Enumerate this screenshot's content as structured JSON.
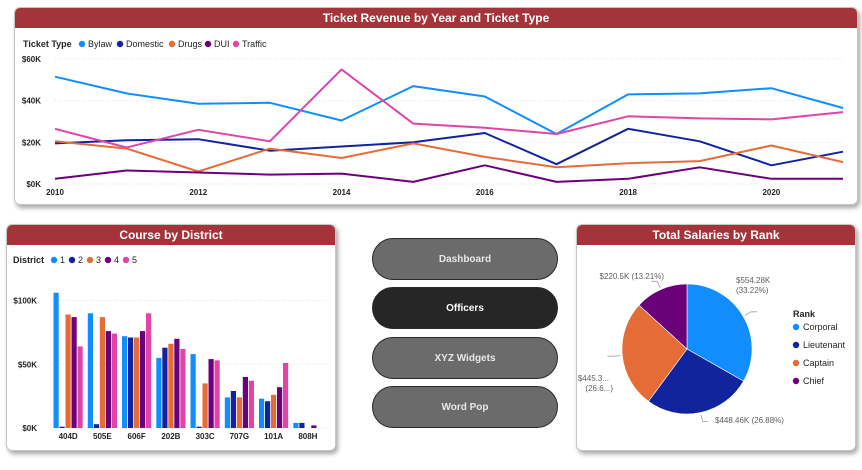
{
  "colors": {
    "title_bar": "#a4343a",
    "nav_inactive": "#6b6b6b",
    "nav_active": "#262626"
  },
  "revenue_chart": {
    "title": "Ticket Revenue by Year and Ticket Type",
    "legend_title": "Ticket Type",
    "y_ticks": [
      "$0K",
      "$20K",
      "$40K",
      "$60K"
    ],
    "x_ticks": [
      "2010",
      "2012",
      "2014",
      "2016",
      "2018",
      "2020"
    ]
  },
  "district_chart": {
    "title": "Course by District",
    "legend_title": "District",
    "y_ticks": [
      "$0K",
      "$50K",
      "$100K"
    ]
  },
  "salary_chart": {
    "title": "Total Salaries by Rank",
    "legend_title": "Rank",
    "slice_labels": [
      "$554.28K",
      "(33.22%)",
      "$448.46K (26.88%)",
      "$445.3...",
      "(26.6...)",
      "$220.5K (13.21%)"
    ]
  },
  "nav": {
    "dashboard": "Dashboard",
    "officers": "Officers",
    "xyz_widgets": "XYZ Widgets",
    "word_pop": "Word Pop"
  },
  "chart_data": [
    {
      "type": "line",
      "title": "Ticket Revenue by Year and Ticket Type",
      "xlabel": "",
      "ylabel": "",
      "x": [
        2010,
        2011,
        2012,
        2013,
        2014,
        2015,
        2016,
        2017,
        2018,
        2019,
        2020,
        2021
      ],
      "ylim": [
        0,
        60000
      ],
      "legend": "top-left",
      "series": [
        {
          "name": "Bylaw",
          "color": "#118dff",
          "values": [
            51500,
            43500,
            38500,
            39000,
            30500,
            47000,
            42000,
            24000,
            43000,
            43500,
            46000,
            36500
          ]
        },
        {
          "name": "Domestic",
          "color": "#12239e",
          "values": [
            19500,
            21000,
            21500,
            16000,
            18000,
            20000,
            24500,
            9500,
            26500,
            20500,
            9000,
            15500
          ]
        },
        {
          "name": "Drugs",
          "color": "#e66c37",
          "values": [
            20500,
            17000,
            6000,
            17000,
            12500,
            19500,
            13000,
            8000,
            10000,
            11000,
            18500,
            10500
          ]
        },
        {
          "name": "DUI",
          "color": "#6b007b",
          "values": [
            2500,
            6500,
            5500,
            4500,
            5000,
            1000,
            9000,
            1000,
            2500,
            8000,
            2500,
            2500
          ]
        },
        {
          "name": "Traffic",
          "color": "#e044a7",
          "values": [
            26500,
            17500,
            26000,
            20500,
            55000,
            29000,
            27000,
            24000,
            32500,
            31500,
            31000,
            34500
          ]
        }
      ]
    },
    {
      "type": "bar",
      "title": "Course by District",
      "categories": [
        "404D",
        "505E",
        "606F",
        "202B",
        "303C",
        "707G",
        "101A",
        "808H"
      ],
      "ylim": [
        0,
        120000
      ],
      "legend": "top-left",
      "series": [
        {
          "name": "1",
          "color": "#118dff",
          "values": [
            106000,
            90000,
            72000,
            55000,
            58000,
            24000,
            23000,
            4000
          ]
        },
        {
          "name": "2",
          "color": "#12239e",
          "values": [
            1000,
            3000,
            71000,
            63000,
            1000,
            29000,
            21000,
            4000
          ]
        },
        {
          "name": "3",
          "color": "#e66c37",
          "values": [
            89000,
            87000,
            71000,
            66000,
            35000,
            24000,
            26000,
            0
          ]
        },
        {
          "name": "4",
          "color": "#6b007b",
          "values": [
            87000,
            76000,
            76000,
            70000,
            54000,
            40000,
            32000,
            2000
          ]
        },
        {
          "name": "5",
          "color": "#e044a7",
          "values": [
            64000,
            74000,
            90000,
            62000,
            53000,
            37000,
            51000,
            0
          ]
        }
      ]
    },
    {
      "type": "pie",
      "title": "Total Salaries by Rank",
      "legend": "right",
      "categories": [
        "Corporal",
        "Lieutenant",
        "Captain",
        "Chief"
      ],
      "values": [
        554.28,
        448.46,
        445.3,
        220.5
      ],
      "percent": [
        33.22,
        26.88,
        26.69,
        13.21
      ],
      "colors": [
        "#118dff",
        "#12239e",
        "#e66c37",
        "#6b007b"
      ]
    }
  ]
}
